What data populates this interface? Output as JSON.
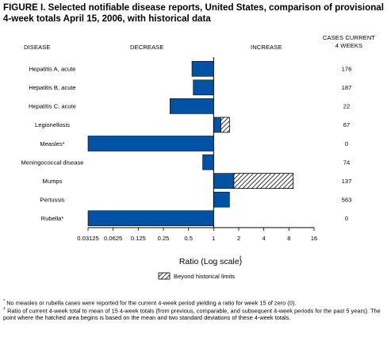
{
  "figure": {
    "title": "FIGURE I. Selected notifiable disease reports, United States, comparison of provisional 4-week totals April 15, 2006, with historical data",
    "col_disease": "DISEASE",
    "col_decrease": "DECREASE",
    "col_increase": "INCREASE",
    "col_cases_line1": "CASES CURRENT",
    "col_cases_line2": "4 WEEKS",
    "footnote1_mark": "*",
    "footnote1": "No measles or rubella cases were reported for the current 4-week period yielding a ratio for week 15 of zero (0).",
    "footnote2_mark": "†",
    "footnote2": "Ratio of current 4-week total to mean of 15 4-week totals (from previous, comparable, and subsequent 4-week periods for the past 5 years). The point where the hatched area begins is based on the mean and two standard deviations of these 4-week totals."
  },
  "chart_data": {
    "type": "bar",
    "orientation": "horizontal",
    "scale": "log2",
    "xlabel": "Ratio (Log scale)",
    "xlabel_mark": "†",
    "xlim": [
      0.03125,
      16
    ],
    "x_ticks": [
      "0.03125",
      "0.0625",
      "0.125",
      "0.25",
      "0.5",
      "1",
      "2",
      "4",
      "8",
      "16"
    ],
    "x_tick_values": [
      0.03125,
      0.0625,
      0.125,
      0.25,
      0.5,
      1,
      2,
      4,
      8,
      16
    ],
    "legend": {
      "label": "Beyond historical limits",
      "style": "hatched"
    },
    "rows": [
      {
        "disease": "Hepatitis A, acute",
        "ratio": 0.55,
        "hatch_from": null,
        "cases": "176"
      },
      {
        "disease": "Hepatitis B, acute",
        "ratio": 0.57,
        "hatch_from": null,
        "cases": "187"
      },
      {
        "disease": "Hepatitis C, acute",
        "ratio": 0.3,
        "hatch_from": null,
        "cases": "22"
      },
      {
        "disease": "Legionellosis",
        "ratio": 1.55,
        "hatch_from": 1.22,
        "cases": "67"
      },
      {
        "disease": "Measles*",
        "ratio": 0.03125,
        "hatch_from": null,
        "cases": "0"
      },
      {
        "disease": "Meningococcal disease",
        "ratio": 0.74,
        "hatch_from": null,
        "cases": "74"
      },
      {
        "disease": "Mumps",
        "ratio": 9.0,
        "hatch_from": 1.75,
        "cases": "137"
      },
      {
        "disease": "Pertussis",
        "ratio": 1.55,
        "hatch_from": null,
        "cases": "563"
      },
      {
        "disease": "Rubella*",
        "ratio": 0.03125,
        "hatch_from": null,
        "cases": "0"
      }
    ],
    "colors": {
      "bar": "#0052a5",
      "hatch": "#000000",
      "axis": "#000000"
    }
  }
}
